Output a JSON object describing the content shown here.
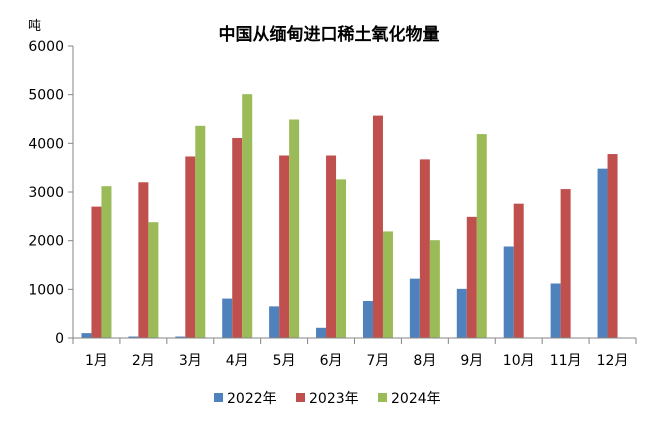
{
  "chart_data": {
    "type": "bar",
    "title": "中国从缅甸进口稀土氧化物量",
    "ylabel": "吨",
    "xlabel": "",
    "ylim": [
      0,
      6000
    ],
    "yticks": [
      0,
      1000,
      2000,
      3000,
      4000,
      5000,
      6000
    ],
    "categories": [
      "1月",
      "2月",
      "3月",
      "4月",
      "5月",
      "6月",
      "7月",
      "8月",
      "9月",
      "10月",
      "11月",
      "12月"
    ],
    "series": [
      {
        "name": "2022年",
        "color": "#4f81bd",
        "values": [
          100,
          30,
          30,
          810,
          650,
          210,
          760,
          1220,
          1010,
          1880,
          1120,
          3480
        ]
      },
      {
        "name": "2023年",
        "color": "#c0504d",
        "values": [
          2700,
          3200,
          3730,
          4110,
          3750,
          3750,
          4570,
          3670,
          2490,
          2760,
          3060,
          3780
        ]
      },
      {
        "name": "2024年",
        "color": "#9bbb59",
        "values": [
          3120,
          2380,
          4360,
          5010,
          4490,
          3260,
          2190,
          2010,
          4190,
          null,
          null,
          null
        ]
      }
    ],
    "grid": false,
    "legend": "bottom"
  }
}
